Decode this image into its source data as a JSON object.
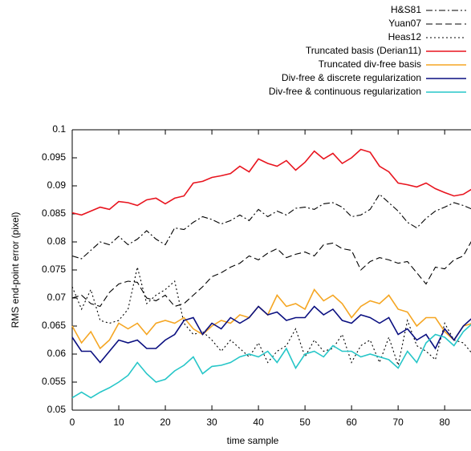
{
  "chart_data": {
    "type": "line",
    "x_label": "time sample",
    "y_label": "RMS end-point error (pixel)",
    "xlim": [
      0,
      86
    ],
    "xticks": [
      0,
      10,
      20,
      30,
      40,
      50,
      60,
      70,
      80
    ],
    "ylim": [
      0.05,
      0.1
    ],
    "yticks": [
      0.05,
      0.055,
      0.06,
      0.065,
      0.07,
      0.075,
      0.08,
      0.085,
      0.09,
      0.095,
      0.1
    ],
    "legend": "top-right",
    "x": [
      0,
      2,
      4,
      6,
      8,
      10,
      12,
      14,
      16,
      18,
      20,
      22,
      24,
      26,
      28,
      30,
      32,
      34,
      36,
      38,
      40,
      42,
      44,
      46,
      48,
      50,
      52,
      54,
      56,
      58,
      60,
      62,
      64,
      66,
      68,
      70,
      72,
      74,
      76,
      78,
      80,
      82,
      84,
      86
    ],
    "series": [
      {
        "name": "H&S81",
        "color": "#000000",
        "dash": "8,3,2,3",
        "values": [
          0.0775,
          0.077,
          0.0785,
          0.08,
          0.0795,
          0.081,
          0.0795,
          0.0805,
          0.082,
          0.0805,
          0.0795,
          0.0825,
          0.0822,
          0.0835,
          0.0845,
          0.084,
          0.0832,
          0.0838,
          0.0848,
          0.0838,
          0.0858,
          0.0845,
          0.0855,
          0.0848,
          0.086,
          0.0862,
          0.0858,
          0.0868,
          0.087,
          0.0862,
          0.0845,
          0.0848,
          0.0858,
          0.0885,
          0.087,
          0.0855,
          0.0835,
          0.0825,
          0.0842,
          0.0855,
          0.0862,
          0.087,
          0.0865,
          0.0858
        ]
      },
      {
        "name": "Yuan07",
        "color": "#000000",
        "dash": "8,4",
        "values": [
          0.07,
          0.0705,
          0.069,
          0.0685,
          0.071,
          0.0725,
          0.073,
          0.0728,
          0.07,
          0.0695,
          0.0705,
          0.0685,
          0.069,
          0.0705,
          0.072,
          0.0738,
          0.0745,
          0.0755,
          0.0762,
          0.0775,
          0.0768,
          0.078,
          0.0788,
          0.0772,
          0.0778,
          0.0782,
          0.0775,
          0.0795,
          0.0798,
          0.0788,
          0.0785,
          0.075,
          0.0765,
          0.0772,
          0.0768,
          0.0762,
          0.0765,
          0.0745,
          0.0725,
          0.0755,
          0.0752,
          0.0768,
          0.0775,
          0.0805
        ]
      },
      {
        "name": "Heas12",
        "color": "#000000",
        "dash": "2,3",
        "values": [
          0.072,
          0.068,
          0.0715,
          0.066,
          0.0655,
          0.066,
          0.068,
          0.0755,
          0.069,
          0.0705,
          0.0715,
          0.073,
          0.0655,
          0.0635,
          0.064,
          0.0625,
          0.0605,
          0.0625,
          0.061,
          0.0595,
          0.062,
          0.0585,
          0.0605,
          0.0615,
          0.0645,
          0.0595,
          0.0625,
          0.0605,
          0.061,
          0.0635,
          0.0585,
          0.0615,
          0.0625,
          0.0585,
          0.063,
          0.058,
          0.066,
          0.0615,
          0.0605,
          0.059,
          0.0655,
          0.0625,
          0.062,
          0.06
        ]
      },
      {
        "name": "Truncated basis (Derian11)",
        "color": "#e8141e",
        "dash": "none",
        "values": [
          0.0852,
          0.0848,
          0.0855,
          0.0862,
          0.0858,
          0.0872,
          0.087,
          0.0865,
          0.0875,
          0.0878,
          0.0868,
          0.0878,
          0.0882,
          0.0905,
          0.0908,
          0.0915,
          0.0918,
          0.0922,
          0.0935,
          0.0925,
          0.0948,
          0.094,
          0.0935,
          0.0945,
          0.0928,
          0.0942,
          0.0962,
          0.0948,
          0.0958,
          0.094,
          0.095,
          0.0965,
          0.096,
          0.0935,
          0.0925,
          0.0905,
          0.0902,
          0.0898,
          0.0905,
          0.0895,
          0.0888,
          0.0882,
          0.0885,
          0.0895
        ]
      },
      {
        "name": "Truncated div-free basis",
        "color": "#f5a623",
        "dash": "none",
        "values": [
          0.065,
          0.062,
          0.064,
          0.061,
          0.0625,
          0.0655,
          0.0645,
          0.0655,
          0.0635,
          0.0655,
          0.066,
          0.0655,
          0.0665,
          0.0645,
          0.0635,
          0.065,
          0.066,
          0.0655,
          0.067,
          0.0665,
          0.0685,
          0.067,
          0.0705,
          0.0685,
          0.069,
          0.068,
          0.0715,
          0.0695,
          0.0705,
          0.069,
          0.0665,
          0.0685,
          0.0695,
          0.069,
          0.0705,
          0.068,
          0.0675,
          0.065,
          0.0665,
          0.0665,
          0.064,
          0.0625,
          0.065,
          0.0655
        ]
      },
      {
        "name": "Div-free & discrete regularization",
        "color": "#0a0f80",
        "dash": "none",
        "values": [
          0.063,
          0.0605,
          0.0605,
          0.0585,
          0.0605,
          0.0625,
          0.062,
          0.0625,
          0.061,
          0.061,
          0.0625,
          0.0635,
          0.066,
          0.0665,
          0.0635,
          0.0655,
          0.0645,
          0.0665,
          0.0655,
          0.0665,
          0.0685,
          0.067,
          0.0675,
          0.066,
          0.0665,
          0.0665,
          0.0685,
          0.067,
          0.068,
          0.066,
          0.0655,
          0.067,
          0.0665,
          0.0655,
          0.0665,
          0.0635,
          0.0645,
          0.0625,
          0.0635,
          0.061,
          0.0645,
          0.0625,
          0.065,
          0.0665
        ]
      },
      {
        "name": "Div-free & continuous regularization",
        "color": "#26c6c8",
        "dash": "none",
        "values": [
          0.0522,
          0.0532,
          0.0522,
          0.0532,
          0.054,
          0.055,
          0.0562,
          0.0585,
          0.0565,
          0.055,
          0.0555,
          0.057,
          0.058,
          0.0595,
          0.0565,
          0.0578,
          0.058,
          0.0585,
          0.0595,
          0.06,
          0.0595,
          0.0605,
          0.0585,
          0.061,
          0.0575,
          0.06,
          0.0605,
          0.0595,
          0.0615,
          0.0605,
          0.0605,
          0.0595,
          0.06,
          0.0595,
          0.059,
          0.0575,
          0.0605,
          0.0585,
          0.062,
          0.0635,
          0.063,
          0.0615,
          0.064,
          0.0655
        ]
      }
    ]
  }
}
